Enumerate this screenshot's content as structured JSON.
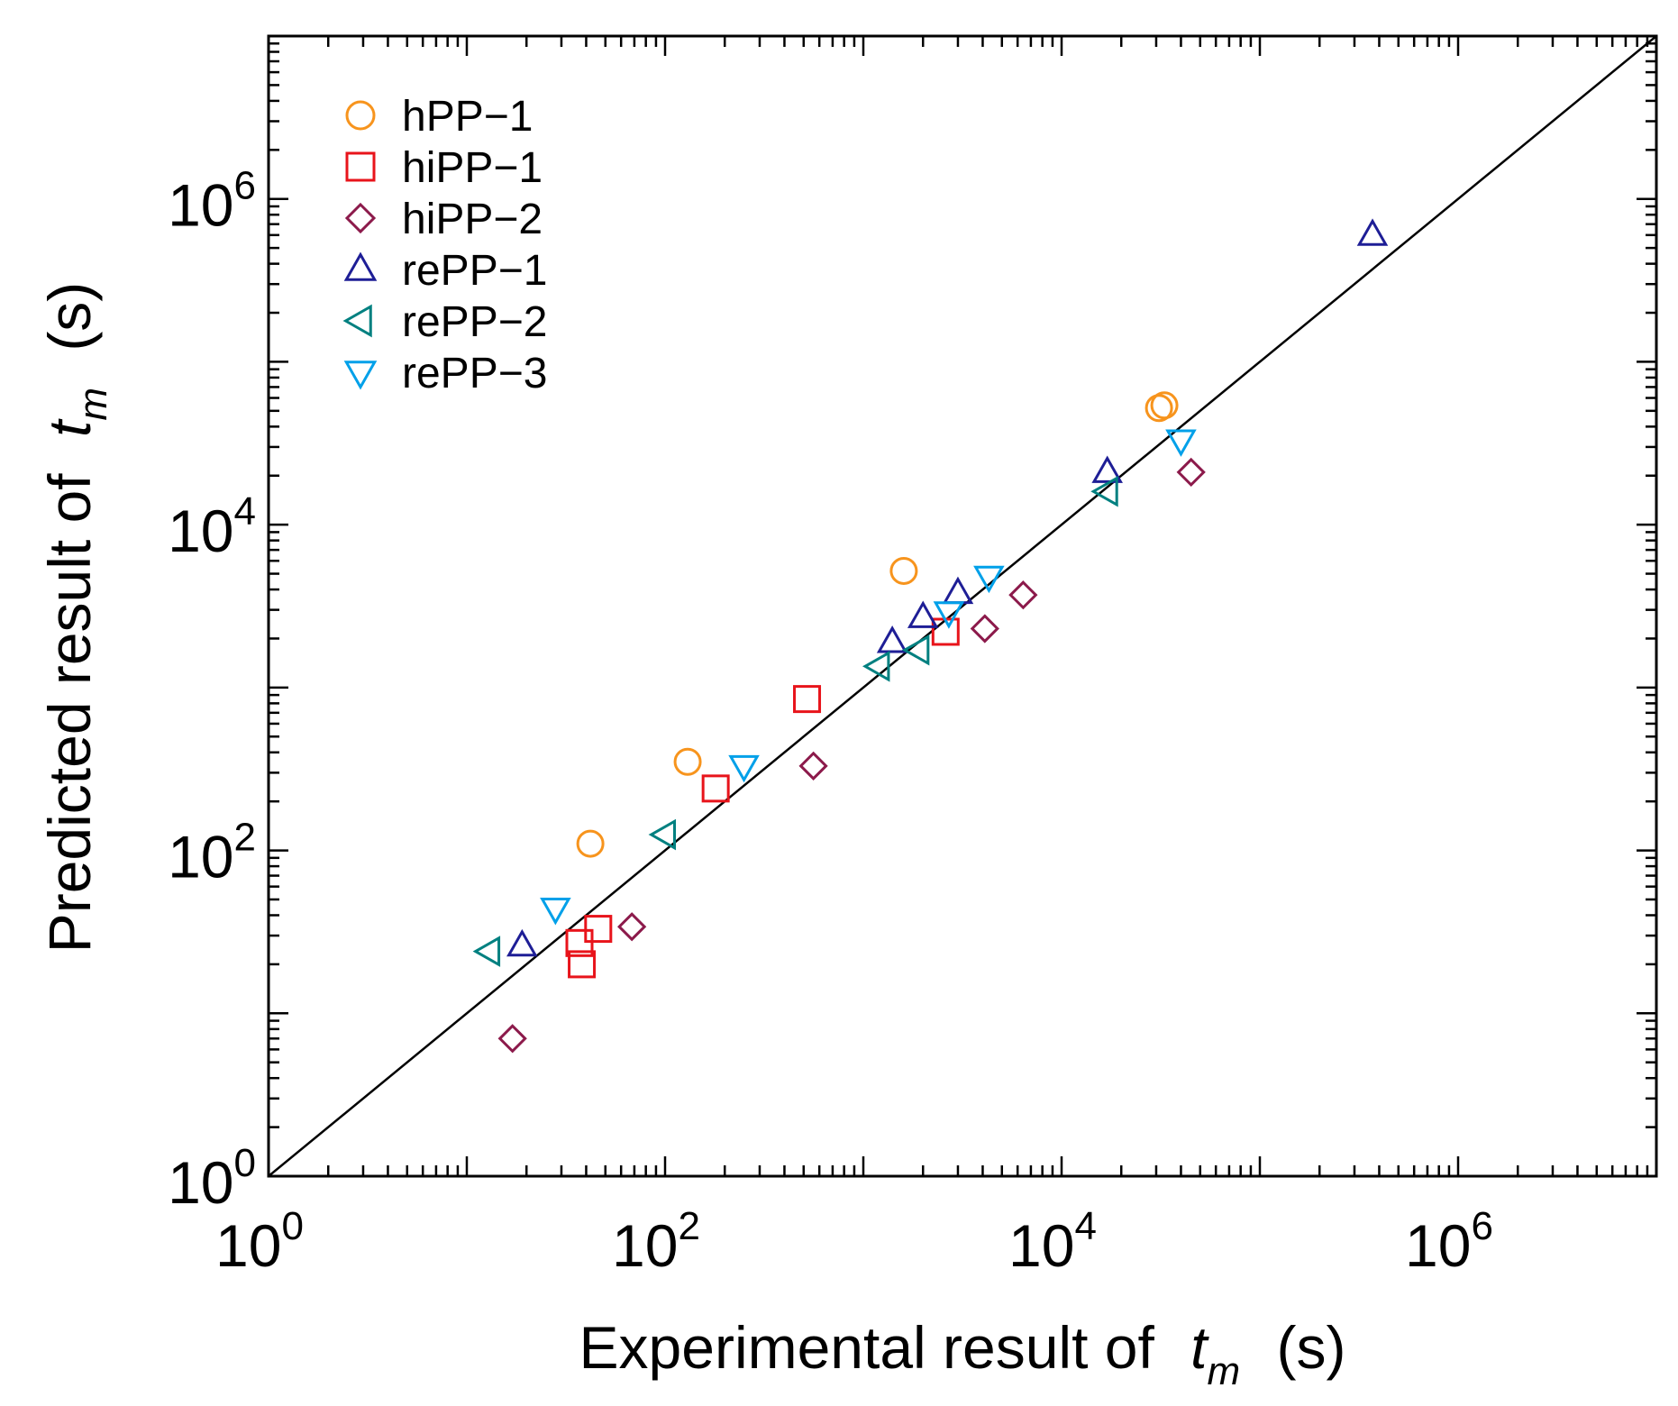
{
  "chart_data": {
    "type": "scatter",
    "xscale": "log",
    "yscale": "log",
    "xlim": [
      1,
      10000000
    ],
    "ylim": [
      1,
      10000000
    ],
    "title": "",
    "xlabel": {
      "prefix": "Experimental result of",
      "var": "t",
      "sub": "m",
      "unit": "(s)"
    },
    "ylabel": {
      "prefix": "Predicted result of",
      "var": "t",
      "sub": "m",
      "unit": "(s)"
    },
    "xticks": [
      {
        "value": 1,
        "base": "10",
        "exp": "0"
      },
      {
        "value": 100,
        "base": "10",
        "exp": "2"
      },
      {
        "value": 10000,
        "base": "10",
        "exp": "4"
      },
      {
        "value": 1000000,
        "base": "10",
        "exp": "6"
      }
    ],
    "yticks": [
      {
        "value": 1,
        "base": "10",
        "exp": "0"
      },
      {
        "value": 100,
        "base": "10",
        "exp": "2"
      },
      {
        "value": 10000,
        "base": "10",
        "exp": "4"
      },
      {
        "value": 1000000,
        "base": "10",
        "exp": "6"
      }
    ],
    "reference_line": {
      "type": "y=x",
      "color": "#000000"
    },
    "legend_position": "top-left",
    "series": [
      {
        "name": "hPP−1",
        "marker": "circle",
        "color": "#F7941D",
        "points": [
          [
            42,
            110
          ],
          [
            130,
            350
          ],
          [
            1600,
            5200
          ],
          [
            31000,
            52000
          ],
          [
            33000,
            54000
          ]
        ]
      },
      {
        "name": "hiPP−1",
        "marker": "square",
        "color": "#E8141B",
        "points": [
          [
            37,
            27
          ],
          [
            38,
            20
          ],
          [
            46,
            33
          ],
          [
            180,
            240
          ],
          [
            520,
            850
          ],
          [
            2600,
            2200
          ]
        ]
      },
      {
        "name": "hiPP−2",
        "marker": "diamond",
        "color": "#8C1A4B",
        "points": [
          [
            17,
            7
          ],
          [
            68,
            34
          ],
          [
            560,
            330
          ],
          [
            4100,
            2300
          ],
          [
            6400,
            3700
          ],
          [
            45000,
            21000
          ]
        ]
      },
      {
        "name": "rePP−1",
        "marker": "triangle-up",
        "color": "#1E1E96",
        "points": [
          [
            19,
            26
          ],
          [
            1400,
            1900
          ],
          [
            2000,
            2700
          ],
          [
            3000,
            3800
          ],
          [
            17000,
            21000
          ],
          [
            370000,
            600000
          ]
        ]
      },
      {
        "name": "rePP−2",
        "marker": "triangle-left",
        "color": "#008080",
        "points": [
          [
            13,
            24
          ],
          [
            100,
            125
          ],
          [
            1200,
            1350
          ],
          [
            1900,
            1700
          ],
          [
            17000,
            16000
          ]
        ]
      },
      {
        "name": "rePP−3",
        "marker": "triangle-down",
        "color": "#00A0E9",
        "points": [
          [
            28,
            44
          ],
          [
            250,
            330
          ],
          [
            2700,
            2900
          ],
          [
            4300,
            4800
          ],
          [
            40000,
            33000
          ]
        ]
      }
    ]
  }
}
